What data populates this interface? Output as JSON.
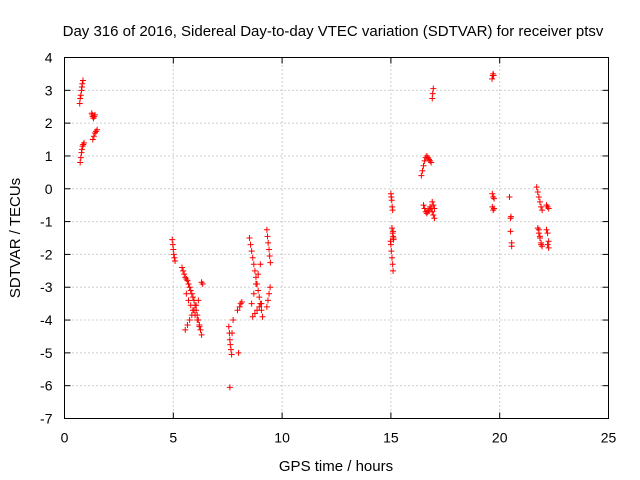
{
  "chart_data": {
    "type": "scatter",
    "title": "Day 316 of 2016, Sidereal Day-to-day VTEC variation (SDTVAR) for receiver ptsv",
    "xlabel": "GPS time / hours",
    "ylabel": "SDTVAR / TECUs",
    "xlim": [
      0,
      25
    ],
    "ylim": [
      -7,
      4
    ],
    "xticks": [
      0,
      5,
      10,
      15,
      20,
      25
    ],
    "yticks": [
      -7,
      -6,
      -5,
      -4,
      -3,
      -2,
      -1,
      0,
      1,
      2,
      3,
      4
    ],
    "xtick_labels": [
      "0",
      "5",
      "10",
      "15",
      "20",
      "25"
    ],
    "ytick_labels": [
      "-7",
      "-6",
      "-5",
      "-4",
      "-3",
      "-2",
      "-1",
      "0",
      "1",
      "2",
      "3",
      "4"
    ],
    "grid": true,
    "marker": "+",
    "marker_color": "#ff0000",
    "series": [
      {
        "name": "SDTVAR",
        "x": [
          0.7,
          0.72,
          0.75,
          0.78,
          0.8,
          0.82,
          0.85,
          0.72,
          0.75,
          0.78,
          0.8,
          0.83,
          0.86,
          0.9,
          1.25,
          1.28,
          1.3,
          1.33,
          1.36,
          1.4,
          1.3,
          1.35,
          1.4,
          1.45,
          1.5,
          4.95,
          4.98,
          5.0,
          5.02,
          5.05,
          5.08,
          5.4,
          5.45,
          5.5,
          5.55,
          5.6,
          5.65,
          5.7,
          5.75,
          5.8,
          5.85,
          5.9,
          5.95,
          6.0,
          6.05,
          6.1,
          6.15,
          6.2,
          6.25,
          6.3,
          6.35,
          5.6,
          5.7,
          5.8,
          5.9,
          6.0,
          6.1,
          6.2,
          5.55,
          5.65,
          5.75,
          5.85,
          5.95,
          6.05,
          6.15,
          6.3,
          7.55,
          7.58,
          7.6,
          7.62,
          7.65,
          7.68,
          7.7,
          7.75,
          7.6,
          8.0,
          7.95,
          8.05,
          8.1,
          8.15,
          8.5,
          8.55,
          8.6,
          8.65,
          8.7,
          8.75,
          8.8,
          8.85,
          8.9,
          8.95,
          9.0,
          9.05,
          9.1,
          8.6,
          8.7,
          8.8,
          8.9,
          9.0,
          8.65,
          8.75,
          8.85,
          8.95,
          9.05,
          9.3,
          9.33,
          9.36,
          9.4,
          9.43,
          9.46,
          9.3,
          9.35,
          9.4,
          9.45,
          15.0,
          15.02,
          15.04,
          15.06,
          15.08,
          15.1,
          15.12,
          14.98,
          15.0,
          15.02,
          15.05,
          15.08,
          15.1,
          15.05,
          15.08,
          15.1,
          15.12,
          16.4,
          16.45,
          16.5,
          16.55,
          16.6,
          16.65,
          16.7,
          16.75,
          16.8,
          16.85,
          16.9,
          16.95,
          17.0,
          16.5,
          16.55,
          16.6,
          16.65,
          16.7,
          16.75,
          16.8,
          16.85,
          16.9,
          16.95,
          17.0,
          16.9,
          16.92,
          16.95,
          19.65,
          19.68,
          19.7,
          19.72,
          19.66,
          19.7,
          19.74,
          19.66,
          19.7,
          19.74,
          20.45,
          20.5,
          20.52,
          20.5,
          20.55,
          20.55,
          21.7,
          21.75,
          21.8,
          21.85,
          21.9,
          21.95,
          21.75,
          21.8,
          21.85,
          21.9,
          21.95,
          21.8,
          21.85,
          21.9,
          22.15,
          22.2,
          22.25,
          22.15,
          22.2,
          22.25,
          22.2,
          22.25
        ],
        "y": [
          2.6,
          2.75,
          2.85,
          3.0,
          3.1,
          3.2,
          3.3,
          0.8,
          0.95,
          1.1,
          1.2,
          1.3,
          1.35,
          1.4,
          2.3,
          2.25,
          2.2,
          2.15,
          2.2,
          2.25,
          1.5,
          1.6,
          1.7,
          1.75,
          1.8,
          -1.55,
          -1.7,
          -1.85,
          -2.0,
          -2.1,
          -2.2,
          -2.4,
          -2.5,
          -2.6,
          -2.7,
          -2.75,
          -2.8,
          -2.9,
          -3.0,
          -3.1,
          -3.2,
          -3.3,
          -3.4,
          -3.55,
          -3.7,
          -3.85,
          -4.0,
          -4.15,
          -4.3,
          -4.45,
          -2.9,
          -3.2,
          -3.4,
          -3.55,
          -3.7,
          -3.85,
          -4.0,
          -4.2,
          -4.3,
          -4.15,
          -4.0,
          -3.85,
          -3.7,
          -3.55,
          -3.4,
          -2.85,
          -4.2,
          -4.4,
          -4.6,
          -4.75,
          -4.9,
          -5.05,
          -4.4,
          -4.0,
          -6.05,
          -5.0,
          -3.7,
          -3.6,
          -3.5,
          -3.45,
          -1.5,
          -1.7,
          -1.9,
          -2.1,
          -2.3,
          -2.5,
          -2.7,
          -2.9,
          -3.1,
          -3.3,
          -3.5,
          -3.7,
          -3.9,
          -3.5,
          -3.2,
          -2.9,
          -2.6,
          -2.3,
          -3.9,
          -3.8,
          -3.7,
          -3.6,
          -3.5,
          -1.25,
          -1.45,
          -1.65,
          -1.85,
          -2.05,
          -2.25,
          -3.6,
          -3.4,
          -3.2,
          -3.0,
          -0.15,
          -0.25,
          -0.35,
          -0.55,
          -0.65,
          -1.3,
          -1.5,
          -1.6,
          -1.7,
          -1.9,
          -2.1,
          -2.3,
          -2.5,
          -1.2,
          -1.35,
          -1.45,
          -1.55,
          0.4,
          0.55,
          0.7,
          0.85,
          0.95,
          1.0,
          0.95,
          0.9,
          0.85,
          0.8,
          -0.4,
          -0.5,
          -0.6,
          -0.5,
          -0.6,
          -0.7,
          -0.75,
          -0.7,
          -0.65,
          -0.55,
          -0.6,
          -0.7,
          -0.8,
          -0.9,
          2.75,
          2.9,
          3.05,
          3.35,
          3.45,
          3.5,
          3.45,
          -0.15,
          -0.25,
          -0.3,
          -0.55,
          -0.65,
          -0.6,
          -0.25,
          -0.9,
          -0.85,
          -1.3,
          -1.65,
          -1.75,
          0.05,
          -0.1,
          -0.25,
          -0.4,
          -0.55,
          -0.65,
          -1.2,
          -1.35,
          -1.5,
          -1.65,
          -1.75,
          -1.25,
          -1.45,
          -1.7,
          -0.5,
          -0.55,
          -0.6,
          -1.25,
          -1.35,
          -1.6,
          -1.7,
          -1.8
        ]
      }
    ]
  }
}
